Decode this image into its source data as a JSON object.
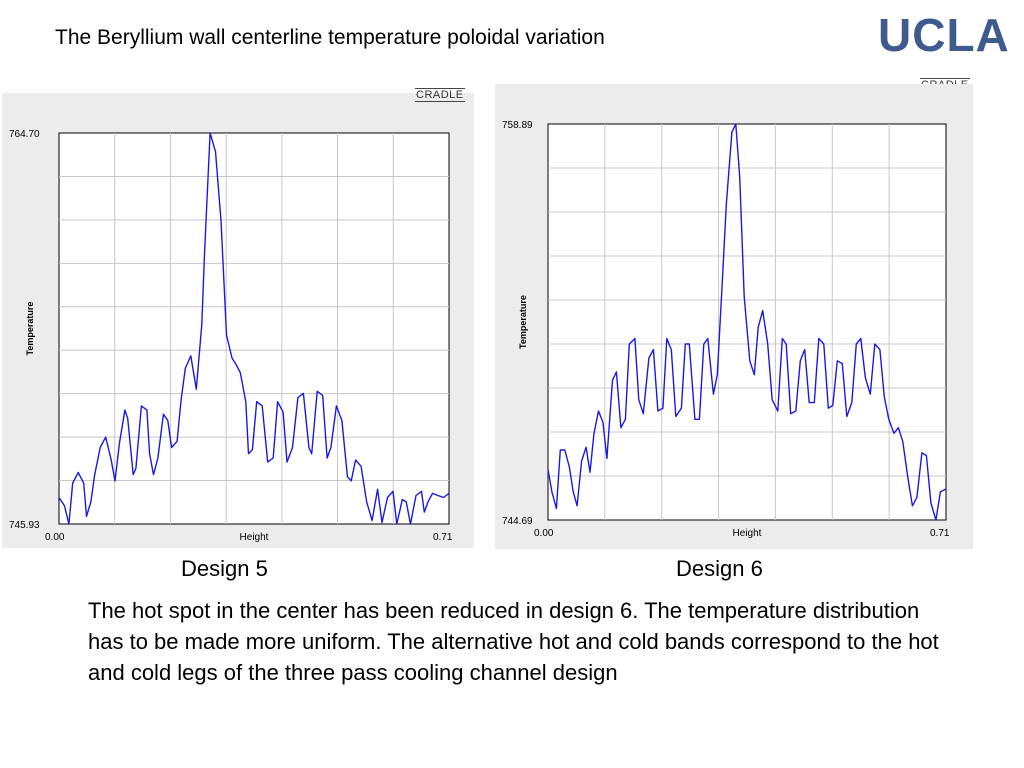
{
  "title": "The Beryllium wall centerline temperature poloidal variation",
  "logo": {
    "text": "UCLA",
    "mark": "CRADLE",
    "color": "#3f5a8c"
  },
  "captions": {
    "left": "Design 5",
    "right": "Design 6"
  },
  "body_text": "The hot spot in the center has been reduced in design 6. The temperature distribution has to be made more uniform. The alternative hot and cold bands correspond to the hot and cold legs of the three pass cooling channel design",
  "line_color": "#1a1adf",
  "chart_data": [
    {
      "type": "line",
      "name": "Design 5",
      "watermark": "CRADLE",
      "xlabel": "Height",
      "ylabel": "Temperature",
      "x_tick_labels": [
        "0.00",
        "0.71"
      ],
      "y_tick_labels": [
        "764.70",
        "745.93"
      ],
      "xlim": [
        0,
        0.71
      ],
      "ylim": [
        745.93,
        764.7
      ],
      "grid": true,
      "x": [
        0.0,
        0.01,
        0.018,
        0.025,
        0.035,
        0.045,
        0.05,
        0.058,
        0.065,
        0.075,
        0.085,
        0.095,
        0.102,
        0.11,
        0.12,
        0.125,
        0.135,
        0.14,
        0.15,
        0.16,
        0.165,
        0.172,
        0.18,
        0.19,
        0.198,
        0.205,
        0.215,
        0.222,
        0.23,
        0.24,
        0.25,
        0.26,
        0.265,
        0.275,
        0.285,
        0.295,
        0.305,
        0.315,
        0.322,
        0.33,
        0.34,
        0.345,
        0.352,
        0.36,
        0.37,
        0.38,
        0.39,
        0.398,
        0.408,
        0.415,
        0.425,
        0.435,
        0.445,
        0.455,
        0.46,
        0.47,
        0.48,
        0.488,
        0.495,
        0.505,
        0.515,
        0.525,
        0.532,
        0.54,
        0.55,
        0.56,
        0.57,
        0.58,
        0.588,
        0.598,
        0.608,
        0.615,
        0.625,
        0.632,
        0.64,
        0.65,
        0.66,
        0.665,
        0.672,
        0.68,
        0.69,
        0.7,
        0.71
      ],
      "y": [
        747.2,
        746.8,
        745.93,
        747.9,
        748.4,
        747.9,
        746.3,
        747.0,
        748.3,
        749.6,
        750.1,
        749.0,
        748.0,
        749.8,
        751.4,
        751.0,
        748.3,
        748.6,
        751.6,
        751.4,
        749.3,
        748.3,
        749.1,
        751.2,
        750.9,
        749.6,
        749.9,
        751.8,
        753.4,
        754.0,
        752.4,
        755.5,
        759.0,
        764.7,
        763.8,
        760.5,
        755.0,
        753.9,
        753.6,
        753.2,
        751.8,
        749.3,
        749.5,
        751.8,
        751.6,
        748.9,
        749.1,
        751.8,
        751.3,
        748.9,
        749.6,
        752.0,
        752.2,
        749.6,
        749.3,
        752.3,
        752.1,
        749.1,
        749.6,
        751.6,
        750.9,
        748.2,
        748.0,
        749.0,
        748.7,
        747.0,
        746.1,
        747.6,
        746.0,
        747.2,
        747.5,
        745.93,
        747.1,
        747.0,
        745.93,
        747.3,
        747.5,
        746.5,
        747.0,
        747.4,
        747.3,
        747.2,
        747.4
      ]
    },
    {
      "type": "line",
      "name": "Design 6",
      "watermark": "CRADLE",
      "xlabel": "Height",
      "ylabel": "Temperature",
      "x_tick_labels": [
        "0.00",
        "0.71"
      ],
      "y_tick_labels": [
        "758.89",
        "744.69"
      ],
      "xlim": [
        0,
        0.71
      ],
      "ylim": [
        744.69,
        758.89
      ],
      "grid": true,
      "x": [
        0.0,
        0.007,
        0.015,
        0.022,
        0.03,
        0.038,
        0.045,
        0.052,
        0.06,
        0.068,
        0.075,
        0.082,
        0.09,
        0.098,
        0.105,
        0.115,
        0.122,
        0.13,
        0.138,
        0.145,
        0.155,
        0.162,
        0.17,
        0.18,
        0.188,
        0.196,
        0.205,
        0.212,
        0.22,
        0.228,
        0.238,
        0.245,
        0.252,
        0.262,
        0.27,
        0.278,
        0.285,
        0.295,
        0.302,
        0.31,
        0.318,
        0.328,
        0.335,
        0.342,
        0.35,
        0.36,
        0.368,
        0.375,
        0.383,
        0.392,
        0.4,
        0.41,
        0.418,
        0.425,
        0.433,
        0.442,
        0.45,
        0.458,
        0.466,
        0.475,
        0.483,
        0.492,
        0.5,
        0.508,
        0.516,
        0.525,
        0.533,
        0.542,
        0.55,
        0.558,
        0.566,
        0.575,
        0.583,
        0.592,
        0.6,
        0.608,
        0.617,
        0.625,
        0.633,
        0.642,
        0.65,
        0.658,
        0.667,
        0.675,
        0.683,
        0.692,
        0.7,
        0.71
      ],
      "y": [
        746.5,
        745.7,
        745.1,
        747.2,
        747.2,
        746.6,
        745.7,
        745.2,
        746.8,
        747.3,
        746.4,
        747.8,
        748.6,
        748.2,
        746.9,
        749.7,
        750.0,
        748.0,
        748.3,
        751.0,
        751.2,
        749.0,
        748.5,
        750.5,
        750.8,
        748.6,
        748.7,
        751.2,
        750.8,
        748.4,
        748.7,
        751.0,
        751.0,
        748.3,
        748.3,
        751.0,
        751.2,
        749.2,
        749.9,
        752.9,
        756.0,
        758.6,
        758.89,
        757.0,
        752.7,
        750.4,
        749.9,
        751.6,
        752.2,
        751.0,
        749.0,
        748.6,
        751.2,
        751.0,
        748.5,
        748.6,
        750.4,
        750.8,
        748.9,
        748.9,
        751.2,
        751.0,
        748.7,
        748.8,
        750.4,
        750.3,
        748.4,
        748.9,
        751.0,
        751.2,
        749.8,
        749.2,
        751.0,
        750.8,
        749.1,
        748.3,
        747.8,
        748.0,
        747.5,
        746.2,
        745.2,
        745.5,
        747.1,
        747.0,
        745.3,
        744.69,
        745.7,
        745.8
      ]
    }
  ]
}
